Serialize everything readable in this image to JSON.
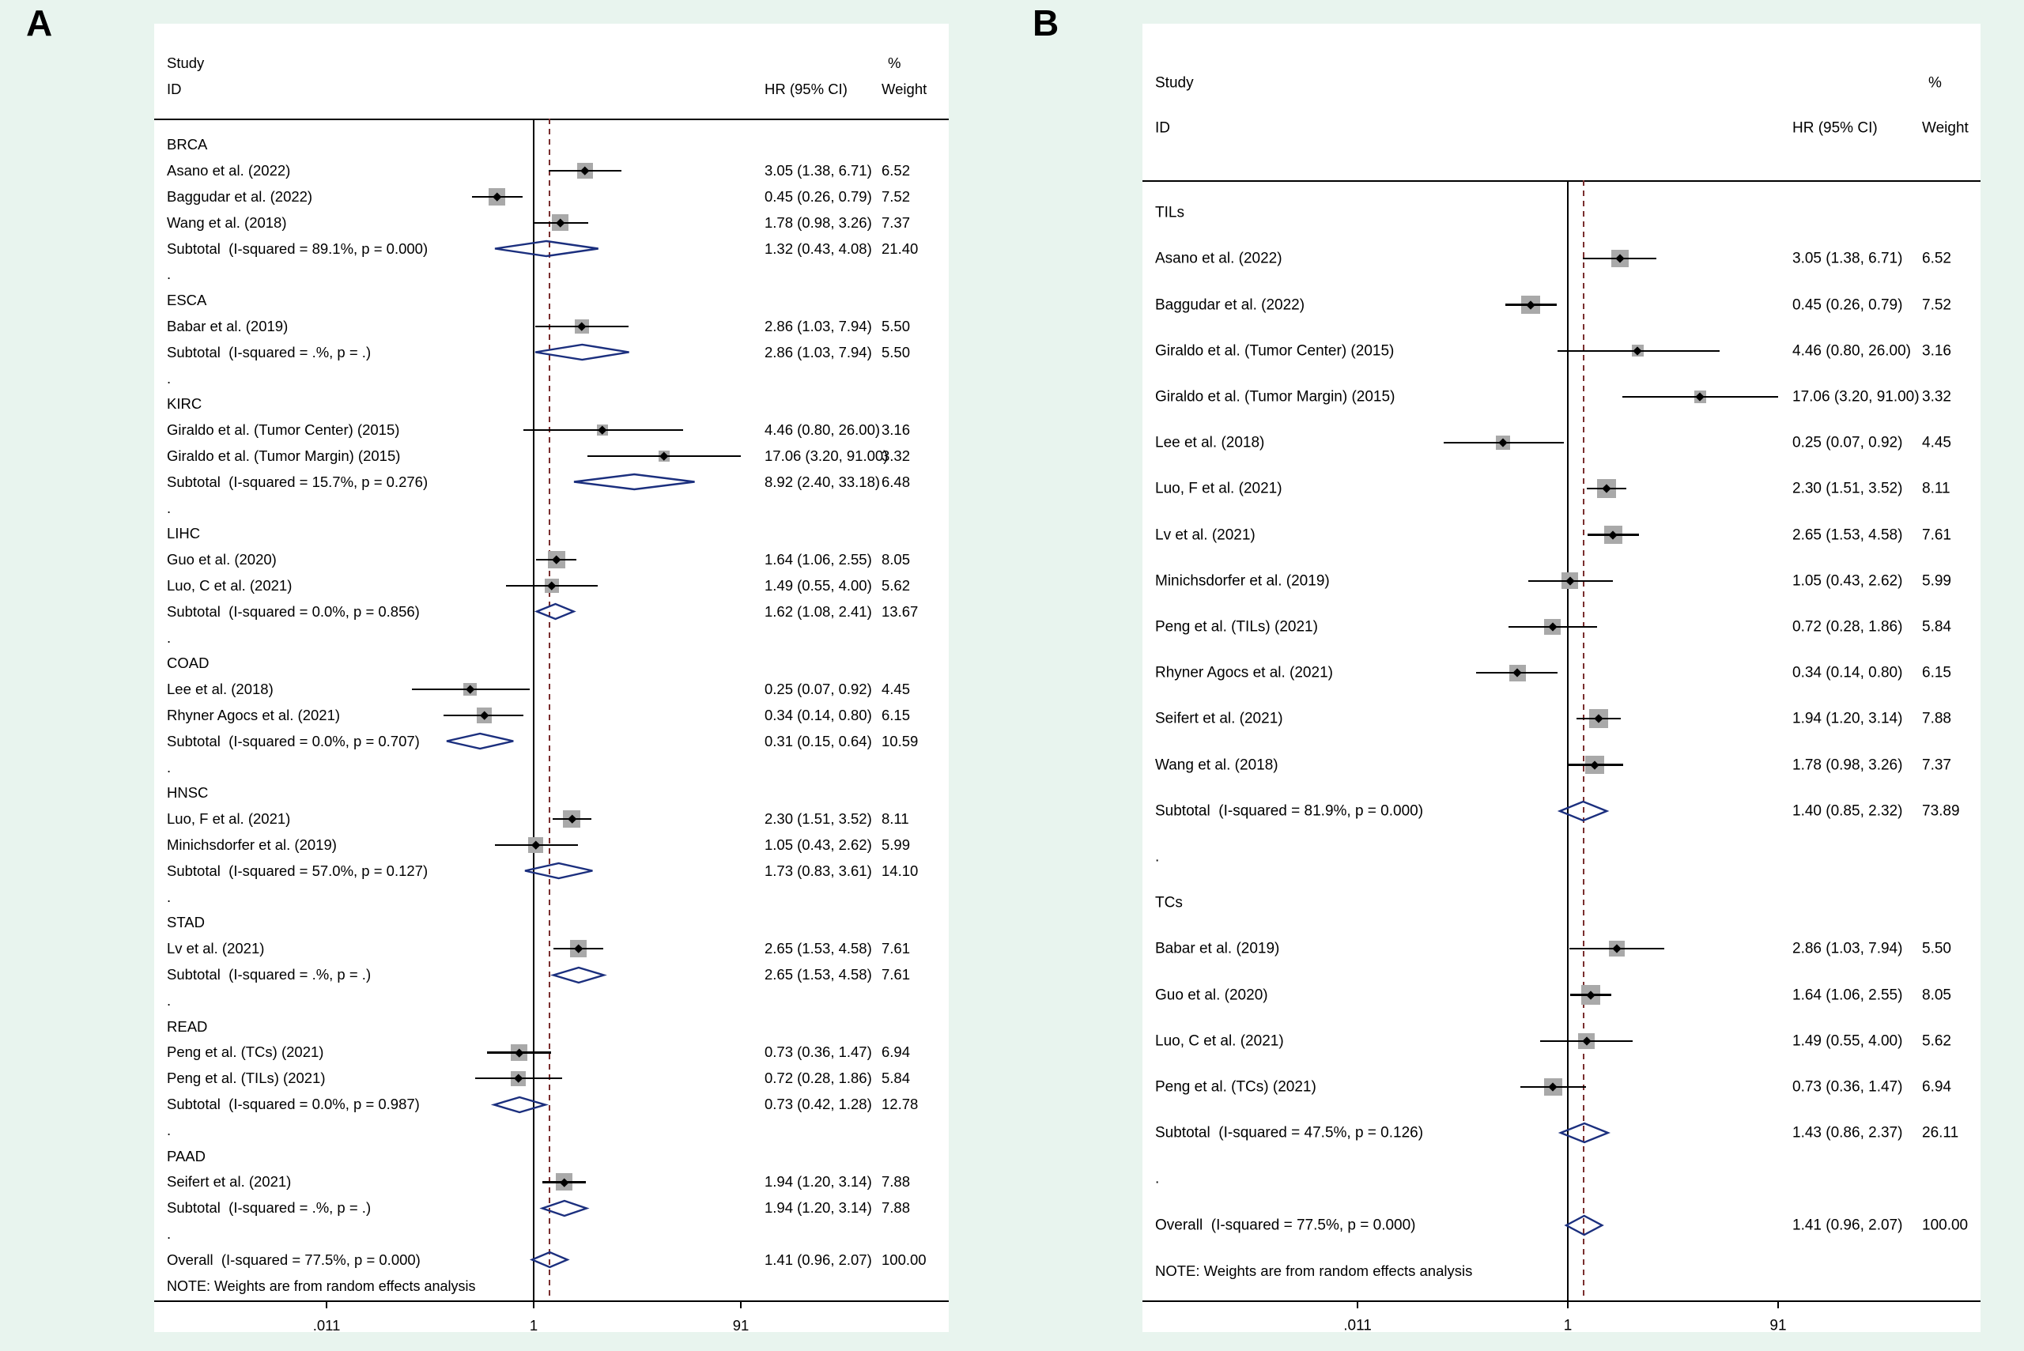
{
  "figure": {
    "panel_a_letter": "A",
    "panel_b_letter": "B"
  },
  "colors": {
    "background": "#e8f4ee",
    "plot_background": "#ffffff",
    "text": "#000000",
    "ci_line": "#000000",
    "effect_square": "#a9a9a9",
    "point_marker": "#000000",
    "pooled_diamond": "#1b2f7e",
    "null_line": "#000000",
    "overall_dashed_line": "#7a2e2e",
    "axis": "#000000"
  },
  "chart_data": [
    {
      "type": "forest",
      "panel": "A",
      "grouping": "by cancer type",
      "columns": {
        "study_line1": "Study",
        "study_line2": "ID",
        "hr_header": "HR (95% CI)",
        "weight_line1": "%",
        "weight_line2": "Weight"
      },
      "x_axis": {
        "scale": "log",
        "min": 0.011,
        "max": 91,
        "ticks": [
          {
            "label": ".011",
            "value": 0.011
          },
          {
            "label": "1",
            "value": 1
          },
          {
            "label": "91",
            "value": 91
          }
        ],
        "null_line": 1,
        "dashed_line_at": 1.41
      },
      "rows": [
        {
          "type": "group",
          "label": "BRCA"
        },
        {
          "type": "study",
          "label": "Asano et al. (2022)",
          "est": 3.05,
          "lo": 1.38,
          "hi": 6.71,
          "hr_text": "3.05 (1.38, 6.71)",
          "weight_text": "6.52"
        },
        {
          "type": "study",
          "label": "Baggudar et al. (2022)",
          "est": 0.45,
          "lo": 0.26,
          "hi": 0.79,
          "hr_text": "0.45 (0.26, 0.79)",
          "weight_text": "7.52"
        },
        {
          "type": "study",
          "label": "Wang et al. (2018)",
          "est": 1.78,
          "lo": 0.98,
          "hi": 3.26,
          "hr_text": "1.78 (0.98, 3.26)",
          "weight_text": "7.37"
        },
        {
          "type": "subtotal",
          "label": "Subtotal  (I-squared = 89.1%, p = 0.000)",
          "est": 1.32,
          "lo": 0.43,
          "hi": 4.08,
          "hr_text": "1.32 (0.43, 4.08)",
          "weight_text": "21.40"
        },
        {
          "type": "gap",
          "label": "."
        },
        {
          "type": "group",
          "label": "ESCA"
        },
        {
          "type": "study",
          "label": "Babar et al. (2019)",
          "est": 2.86,
          "lo": 1.03,
          "hi": 7.94,
          "hr_text": "2.86 (1.03, 7.94)",
          "weight_text": "5.50"
        },
        {
          "type": "subtotal",
          "label": "Subtotal  (I-squared = .%, p = .)",
          "est": 2.86,
          "lo": 1.03,
          "hi": 7.94,
          "hr_text": "2.86 (1.03, 7.94)",
          "weight_text": "5.50"
        },
        {
          "type": "gap",
          "label": "."
        },
        {
          "type": "group",
          "label": "KIRC"
        },
        {
          "type": "study",
          "label": "Giraldo et al. (Tumor Center) (2015)",
          "est": 4.46,
          "lo": 0.8,
          "hi": 26.0,
          "hr_text": "4.46 (0.80, 26.00)",
          "weight_text": "3.16"
        },
        {
          "type": "study",
          "label": "Giraldo et al. (Tumor Margin) (2015)",
          "est": 17.06,
          "lo": 3.2,
          "hi": 91.0,
          "hr_text": "17.06 (3.20, 91.00)",
          "weight_text": "3.32"
        },
        {
          "type": "subtotal",
          "label": "Subtotal  (I-squared = 15.7%, p = 0.276)",
          "est": 8.92,
          "lo": 2.4,
          "hi": 33.18,
          "hr_text": "8.92 (2.40, 33.18)",
          "weight_text": "6.48"
        },
        {
          "type": "gap",
          "label": "."
        },
        {
          "type": "group",
          "label": "LIHC"
        },
        {
          "type": "study",
          "label": "Guo et al. (2020)",
          "est": 1.64,
          "lo": 1.06,
          "hi": 2.55,
          "hr_text": "1.64 (1.06, 2.55)",
          "weight_text": "8.05"
        },
        {
          "type": "study",
          "label": "Luo, C et al. (2021)",
          "est": 1.49,
          "lo": 0.55,
          "hi": 4.0,
          "hr_text": "1.49 (0.55, 4.00)",
          "weight_text": "5.62"
        },
        {
          "type": "subtotal",
          "label": "Subtotal  (I-squared = 0.0%, p = 0.856)",
          "est": 1.62,
          "lo": 1.08,
          "hi": 2.41,
          "hr_text": "1.62 (1.08, 2.41)",
          "weight_text": "13.67"
        },
        {
          "type": "gap",
          "label": "."
        },
        {
          "type": "group",
          "label": "COAD"
        },
        {
          "type": "study",
          "label": "Lee et al. (2018)",
          "est": 0.25,
          "lo": 0.07,
          "hi": 0.92,
          "hr_text": "0.25 (0.07, 0.92)",
          "weight_text": "4.45"
        },
        {
          "type": "study",
          "label": "Rhyner Agocs et al. (2021)",
          "est": 0.34,
          "lo": 0.14,
          "hi": 0.8,
          "hr_text": "0.34 (0.14, 0.80)",
          "weight_text": "6.15"
        },
        {
          "type": "subtotal",
          "label": "Subtotal  (I-squared = 0.0%, p = 0.707)",
          "est": 0.31,
          "lo": 0.15,
          "hi": 0.64,
          "hr_text": "0.31 (0.15, 0.64)",
          "weight_text": "10.59"
        },
        {
          "type": "gap",
          "label": "."
        },
        {
          "type": "group",
          "label": "HNSC"
        },
        {
          "type": "study",
          "label": "Luo, F et al. (2021)",
          "est": 2.3,
          "lo": 1.51,
          "hi": 3.52,
          "hr_text": "2.30 (1.51, 3.52)",
          "weight_text": "8.11"
        },
        {
          "type": "study",
          "label": "Minichsdorfer et al. (2019)",
          "est": 1.05,
          "lo": 0.43,
          "hi": 2.62,
          "hr_text": "1.05 (0.43, 2.62)",
          "weight_text": "5.99"
        },
        {
          "type": "subtotal",
          "label": "Subtotal  (I-squared = 57.0%, p = 0.127)",
          "est": 1.73,
          "lo": 0.83,
          "hi": 3.61,
          "hr_text": "1.73 (0.83, 3.61)",
          "weight_text": "14.10"
        },
        {
          "type": "gap",
          "label": "."
        },
        {
          "type": "group",
          "label": "STAD"
        },
        {
          "type": "study",
          "label": "Lv et al. (2021)",
          "est": 2.65,
          "lo": 1.53,
          "hi": 4.58,
          "hr_text": "2.65 (1.53, 4.58)",
          "weight_text": "7.61"
        },
        {
          "type": "subtotal",
          "label": "Subtotal  (I-squared = .%, p = .)",
          "est": 2.65,
          "lo": 1.53,
          "hi": 4.58,
          "hr_text": "2.65 (1.53, 4.58)",
          "weight_text": "7.61"
        },
        {
          "type": "gap",
          "label": "."
        },
        {
          "type": "group",
          "label": "READ"
        },
        {
          "type": "study",
          "label": "Peng et al. (TCs) (2021)",
          "est": 0.73,
          "lo": 0.36,
          "hi": 1.47,
          "hr_text": "0.73 (0.36, 1.47)",
          "weight_text": "6.94"
        },
        {
          "type": "study",
          "label": "Peng et al. (TILs) (2021)",
          "est": 0.72,
          "lo": 0.28,
          "hi": 1.86,
          "hr_text": "0.72 (0.28, 1.86)",
          "weight_text": "5.84"
        },
        {
          "type": "subtotal",
          "label": "Subtotal  (I-squared = 0.0%, p = 0.987)",
          "est": 0.73,
          "lo": 0.42,
          "hi": 1.28,
          "hr_text": "0.73 (0.42, 1.28)",
          "weight_text": "12.78"
        },
        {
          "type": "gap",
          "label": "."
        },
        {
          "type": "group",
          "label": "PAAD"
        },
        {
          "type": "study",
          "label": "Seifert et al. (2021)",
          "est": 1.94,
          "lo": 1.2,
          "hi": 3.14,
          "hr_text": "1.94 (1.20, 3.14)",
          "weight_text": "7.88"
        },
        {
          "type": "subtotal",
          "label": "Subtotal  (I-squared = .%, p = .)",
          "est": 1.94,
          "lo": 1.2,
          "hi": 3.14,
          "hr_text": "1.94 (1.20, 3.14)",
          "weight_text": "7.88"
        },
        {
          "type": "gap",
          "label": "."
        },
        {
          "type": "overall",
          "label": "Overall  (I-squared = 77.5%, p = 0.000)",
          "est": 1.41,
          "lo": 0.96,
          "hi": 2.07,
          "hr_text": "1.41 (0.96, 2.07)",
          "weight_text": "100.00"
        },
        {
          "type": "note",
          "label": "NOTE: Weights are from random effects analysis"
        }
      ]
    },
    {
      "type": "forest",
      "panel": "B",
      "grouping": "by TILs / TCs",
      "columns": {
        "study_line1": "Study",
        "study_line2": "ID",
        "hr_header": "HR (95% CI)",
        "weight_line1": "%",
        "weight_line2": "Weight"
      },
      "x_axis": {
        "scale": "log",
        "min": 0.011,
        "max": 91,
        "ticks": [
          {
            "label": ".011",
            "value": 0.011
          },
          {
            "label": "1",
            "value": 1
          },
          {
            "label": "91",
            "value": 91
          }
        ],
        "null_line": 1,
        "dashed_line_at": 1.41
      },
      "rows": [
        {
          "type": "group",
          "label": "TILs"
        },
        {
          "type": "study",
          "label": "Asano et al. (2022)",
          "est": 3.05,
          "lo": 1.38,
          "hi": 6.71,
          "hr_text": "3.05 (1.38, 6.71)",
          "weight_text": "6.52"
        },
        {
          "type": "study",
          "label": "Baggudar et al. (2022)",
          "est": 0.45,
          "lo": 0.26,
          "hi": 0.79,
          "hr_text": "0.45 (0.26, 0.79)",
          "weight_text": "7.52"
        },
        {
          "type": "study",
          "label": "Giraldo et al. (Tumor Center) (2015)",
          "est": 4.46,
          "lo": 0.8,
          "hi": 26.0,
          "hr_text": "4.46 (0.80, 26.00)",
          "weight_text": "3.16"
        },
        {
          "type": "study",
          "label": "Giraldo et al. (Tumor Margin) (2015)",
          "est": 17.06,
          "lo": 3.2,
          "hi": 91.0,
          "hr_text": "17.06 (3.20, 91.00)",
          "weight_text": "3.32"
        },
        {
          "type": "study",
          "label": "Lee et al. (2018)",
          "est": 0.25,
          "lo": 0.07,
          "hi": 0.92,
          "hr_text": "0.25 (0.07, 0.92)",
          "weight_text": "4.45"
        },
        {
          "type": "study",
          "label": "Luo, F et al. (2021)",
          "est": 2.3,
          "lo": 1.51,
          "hi": 3.52,
          "hr_text": "2.30 (1.51, 3.52)",
          "weight_text": "8.11"
        },
        {
          "type": "study",
          "label": "Lv et al. (2021)",
          "est": 2.65,
          "lo": 1.53,
          "hi": 4.58,
          "hr_text": "2.65 (1.53, 4.58)",
          "weight_text": "7.61"
        },
        {
          "type": "study",
          "label": "Minichsdorfer et al. (2019)",
          "est": 1.05,
          "lo": 0.43,
          "hi": 2.62,
          "hr_text": "1.05 (0.43, 2.62)",
          "weight_text": "5.99"
        },
        {
          "type": "study",
          "label": "Peng et al. (TILs) (2021)",
          "est": 0.72,
          "lo": 0.28,
          "hi": 1.86,
          "hr_text": "0.72 (0.28, 1.86)",
          "weight_text": "5.84"
        },
        {
          "type": "study",
          "label": "Rhyner Agocs et al. (2021)",
          "est": 0.34,
          "lo": 0.14,
          "hi": 0.8,
          "hr_text": "0.34 (0.14, 0.80)",
          "weight_text": "6.15"
        },
        {
          "type": "study",
          "label": "Seifert et al. (2021)",
          "est": 1.94,
          "lo": 1.2,
          "hi": 3.14,
          "hr_text": "1.94 (1.20, 3.14)",
          "weight_text": "7.88"
        },
        {
          "type": "study",
          "label": "Wang et al. (2018)",
          "est": 1.78,
          "lo": 0.98,
          "hi": 3.26,
          "hr_text": "1.78 (0.98, 3.26)",
          "weight_text": "7.37"
        },
        {
          "type": "subtotal",
          "label": "Subtotal  (I-squared = 81.9%, p = 0.000)",
          "est": 1.4,
          "lo": 0.85,
          "hi": 2.32,
          "hr_text": "1.40 (0.85, 2.32)",
          "weight_text": "73.89"
        },
        {
          "type": "gap",
          "label": "."
        },
        {
          "type": "group",
          "label": "TCs"
        },
        {
          "type": "study",
          "label": "Babar et al. (2019)",
          "est": 2.86,
          "lo": 1.03,
          "hi": 7.94,
          "hr_text": "2.86 (1.03, 7.94)",
          "weight_text": "5.50"
        },
        {
          "type": "study",
          "label": "Guo et al. (2020)",
          "est": 1.64,
          "lo": 1.06,
          "hi": 2.55,
          "hr_text": "1.64 (1.06, 2.55)",
          "weight_text": "8.05"
        },
        {
          "type": "study",
          "label": "Luo, C et al. (2021)",
          "est": 1.49,
          "lo": 0.55,
          "hi": 4.0,
          "hr_text": "1.49 (0.55, 4.00)",
          "weight_text": "5.62"
        },
        {
          "type": "study",
          "label": "Peng et al. (TCs) (2021)",
          "est": 0.73,
          "lo": 0.36,
          "hi": 1.47,
          "hr_text": "0.73 (0.36, 1.47)",
          "weight_text": "6.94"
        },
        {
          "type": "subtotal",
          "label": "Subtotal  (I-squared = 47.5%, p = 0.126)",
          "est": 1.43,
          "lo": 0.86,
          "hi": 2.37,
          "hr_text": "1.43 (0.86, 2.37)",
          "weight_text": "26.11"
        },
        {
          "type": "gap",
          "label": "."
        },
        {
          "type": "overall",
          "label": "Overall  (I-squared = 77.5%, p = 0.000)",
          "est": 1.41,
          "lo": 0.96,
          "hi": 2.07,
          "hr_text": "1.41 (0.96, 2.07)",
          "weight_text": "100.00"
        },
        {
          "type": "note",
          "label": "NOTE: Weights are from random effects analysis"
        }
      ]
    }
  ]
}
